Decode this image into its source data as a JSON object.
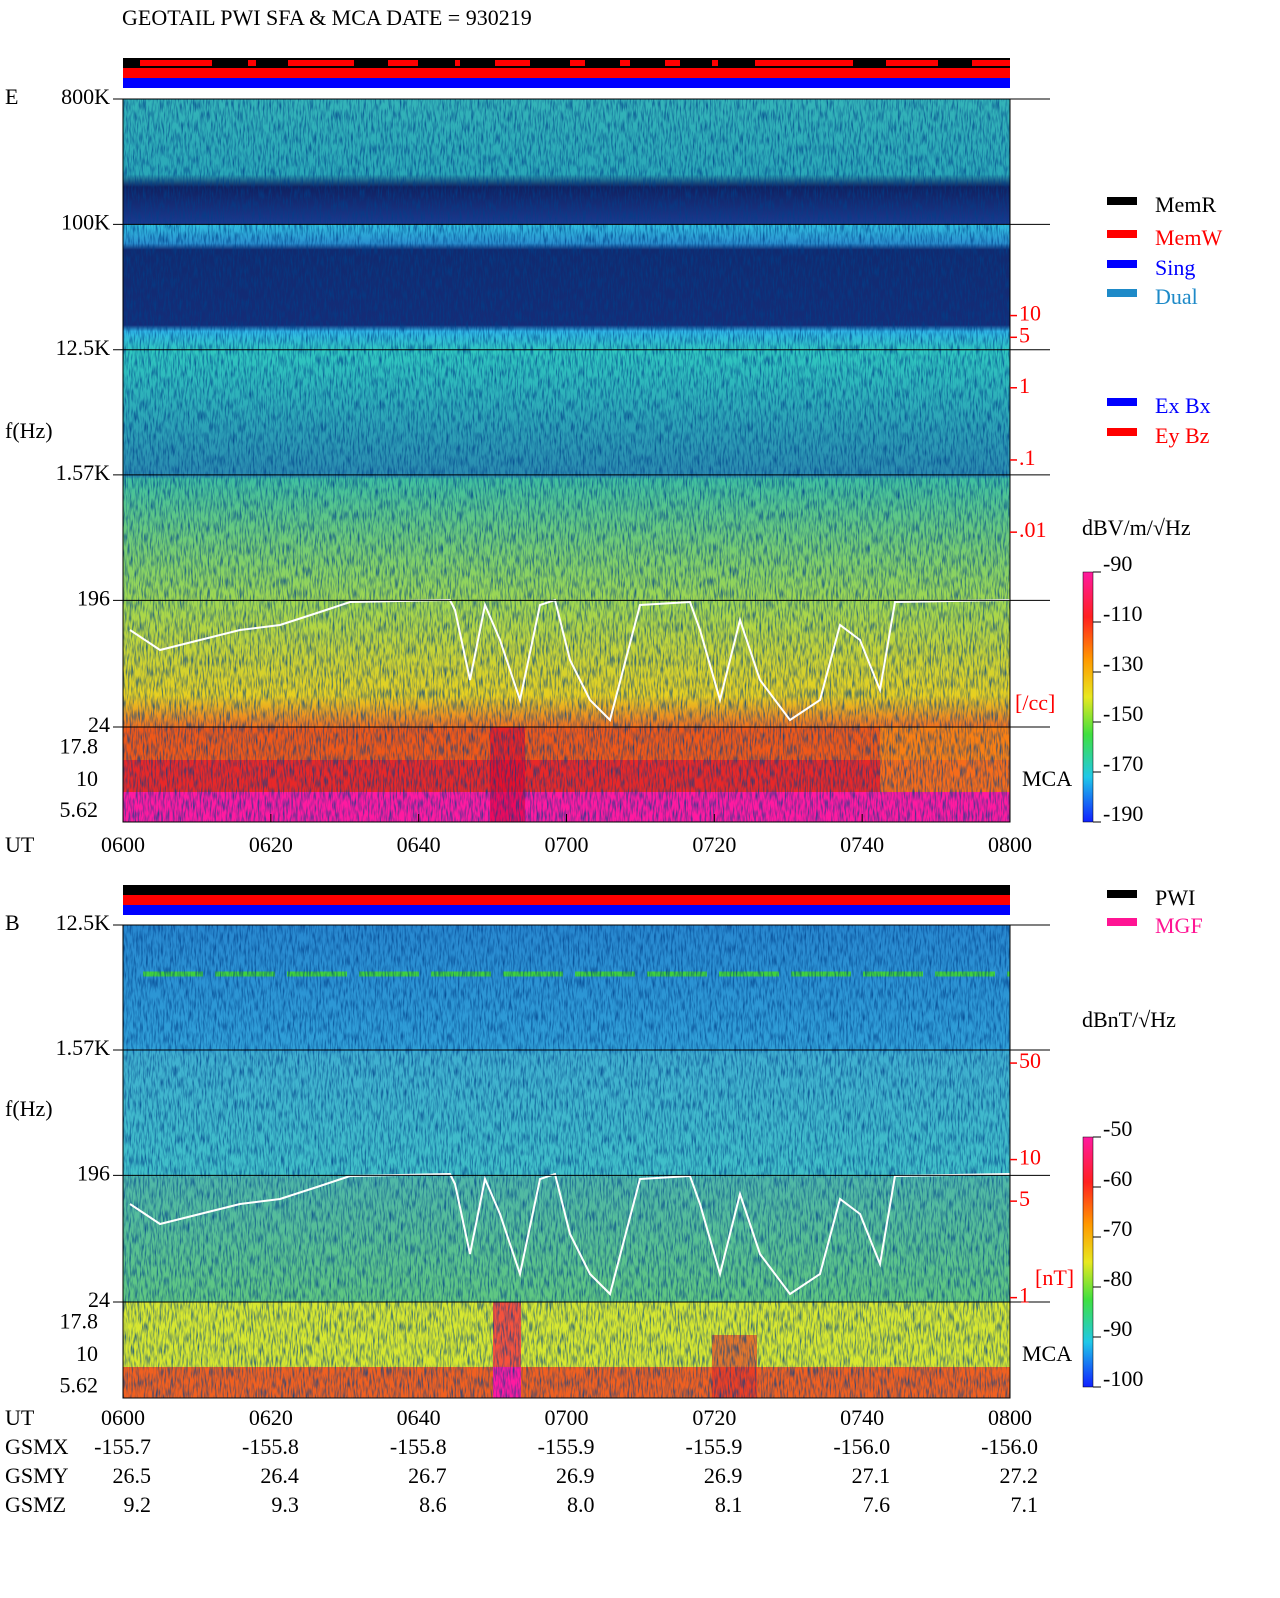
{
  "header": {
    "title": "GEOTAIL  PWI SFA & MCA   DATE = 930219"
  },
  "chart_data": [
    {
      "type": "spectrogram",
      "panel": "E",
      "ylabel": "f(Hz)",
      "log_y": true,
      "ylim": [
        24,
        800000
      ],
      "yticks": [
        {
          "value": 800000,
          "label": "800K"
        },
        {
          "value": 100000,
          "label": "100K"
        },
        {
          "value": 12500,
          "label": "12.5K"
        },
        {
          "value": 1570,
          "label": "1.57K"
        },
        196,
        24
      ],
      "mca_label": "MCA",
      "mca_channels": [
        "17.8",
        "10",
        "5.62"
      ],
      "xlabel": "UT",
      "x": [
        "0600",
        "0620",
        "0640",
        "0700",
        "0720",
        "0740",
        "0800"
      ],
      "y2lim": [
        2e-05,
        10000
      ],
      "y2ticks": [
        10,
        5,
        1,
        {
          "value": 0.1,
          "label": ".1"
        },
        {
          "value": 0.01,
          "label": ".01"
        }
      ],
      "y2label": "[/cc]",
      "y2color": "#ff0000",
      "colorbar": {
        "label": "dBV/m/√Hz",
        "lim": [
          -190,
          -90
        ],
        "ticks": [
          -90,
          -110,
          -130,
          -150,
          -170,
          -190
        ]
      },
      "legend": [
        {
          "name": "MemR",
          "color": "#000000"
        },
        {
          "name": "MemW",
          "color": "#ff0000"
        },
        {
          "name": "Sing",
          "color": "#0000ff"
        },
        {
          "name": "Dual",
          "color": "#1e8ac8"
        }
      ],
      "legend2": [
        {
          "name": "Ex Bx",
          "color": "#0000ff"
        },
        {
          "name": "Ey Bz",
          "color": "#ff0000"
        }
      ]
    },
    {
      "type": "spectrogram",
      "panel": "B",
      "ylabel": "f(Hz)",
      "log_y": true,
      "ylim": [
        24,
        12500
      ],
      "yticks": [
        {
          "value": 12500,
          "label": "12.5K"
        },
        {
          "value": 1570,
          "label": "1.57K"
        },
        196,
        24
      ],
      "mca_label": "MCA",
      "mca_channels": [
        "17.8",
        "10",
        "5.62"
      ],
      "y2lim": [
        0.93,
        500
      ],
      "y2ticks": [
        50,
        10,
        5,
        1
      ],
      "y2label": "[nT]",
      "y2color": "#ff0000",
      "colorbar": {
        "label": "dBnT/√Hz",
        "lim": [
          -100,
          -50
        ],
        "ticks": [
          -50,
          -60,
          -70,
          -80,
          -90,
          -100
        ]
      },
      "legend": [
        {
          "name": "PWI",
          "color": "#000000"
        },
        {
          "name": "MGF",
          "color": "#ff1493"
        }
      ]
    }
  ],
  "orbit": {
    "x_label": "UT",
    "x": [
      "0600",
      "0620",
      "0640",
      "0700",
      "0720",
      "0740",
      "0800"
    ],
    "rows": [
      {
        "name": "GSMX",
        "values": [
          "-155.7",
          "-155.8",
          "-155.8",
          "-155.9",
          "-155.9",
          "-156.0",
          "-156.0"
        ]
      },
      {
        "name": "GSMY",
        "values": [
          "26.5",
          "26.4",
          "26.7",
          "26.9",
          "26.9",
          "27.1",
          "27.2"
        ]
      },
      {
        "name": "GSMZ",
        "values": [
          "9.2",
          "9.3",
          "8.6",
          "8.0",
          "8.1",
          "7.6",
          "7.1"
        ]
      }
    ]
  }
}
